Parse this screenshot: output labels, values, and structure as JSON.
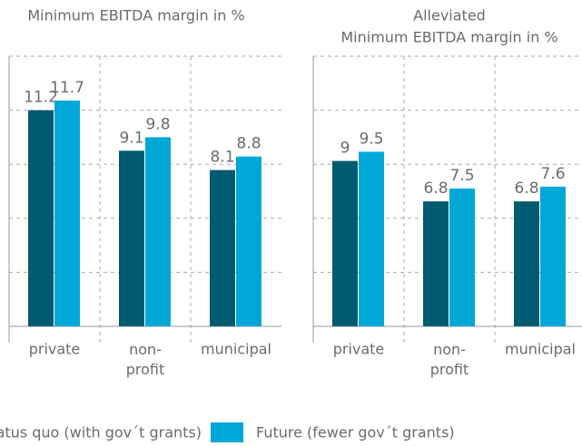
{
  "chart_data": [
    {
      "type": "bar",
      "title": [
        "Minimum EBITDA margin in %"
      ],
      "categories": [
        "private",
        "non-\nprofit",
        "municipal"
      ],
      "series": [
        {
          "name": "Status quo (with gov´t grants)",
          "color": "#005a70",
          "values": [
            11.2,
            9.1,
            8.1
          ]
        },
        {
          "name": "Future (fewer gov´t grants)",
          "color": "#00a8d8",
          "values": [
            11.7,
            9.8,
            8.8
          ]
        }
      ],
      "ylim": [
        0,
        14
      ],
      "grid": true,
      "legend": "bottom"
    },
    {
      "type": "bar",
      "title": [
        "Alleviated",
        "Minimum EBITDA margin in %"
      ],
      "categories": [
        "private",
        "non-\nprofit",
        "municipal"
      ],
      "series": [
        {
          "name": "Status quo (with gov´t grants)",
          "color": "#005a70",
          "values": [
            9.0,
            6.8,
            6.8
          ]
        },
        {
          "name": "Future (fewer gov´t grants)",
          "color": "#00a8d8",
          "values": [
            9.5,
            7.5,
            7.6
          ]
        }
      ],
      "ylim": [
        0,
        14.7
      ],
      "grid": true
    }
  ]
}
